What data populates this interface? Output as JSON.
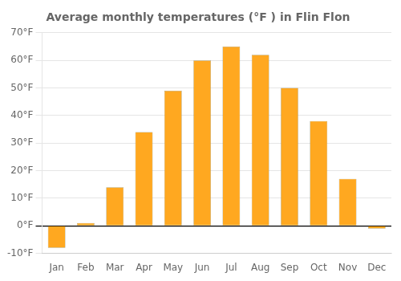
{
  "chart_data": {
    "type": "bar",
    "title": "Average monthly temperatures (°F ) in Flin Flon",
    "categories": [
      "Jan",
      "Feb",
      "Mar",
      "Apr",
      "May",
      "Jun",
      "Jul",
      "Aug",
      "Sep",
      "Oct",
      "Nov",
      "Dec"
    ],
    "values": [
      -8,
      1,
      14,
      34,
      49,
      60,
      65,
      62,
      50,
      38,
      17,
      -1
    ],
    "color": "#FFA820",
    "ylim": [
      -10,
      70
    ],
    "yticks": [
      {
        "value": -10,
        "label": "-10°F"
      },
      {
        "value": 0,
        "label": "0°F"
      },
      {
        "value": 10,
        "label": "10°F"
      },
      {
        "value": 20,
        "label": "20°F"
      },
      {
        "value": 30,
        "label": "30°F"
      },
      {
        "value": 40,
        "label": "40°F"
      },
      {
        "value": 50,
        "label": "50°F"
      },
      {
        "value": 60,
        "label": "60°F"
      },
      {
        "value": 70,
        "label": "70°F"
      }
    ],
    "grid": true
  }
}
